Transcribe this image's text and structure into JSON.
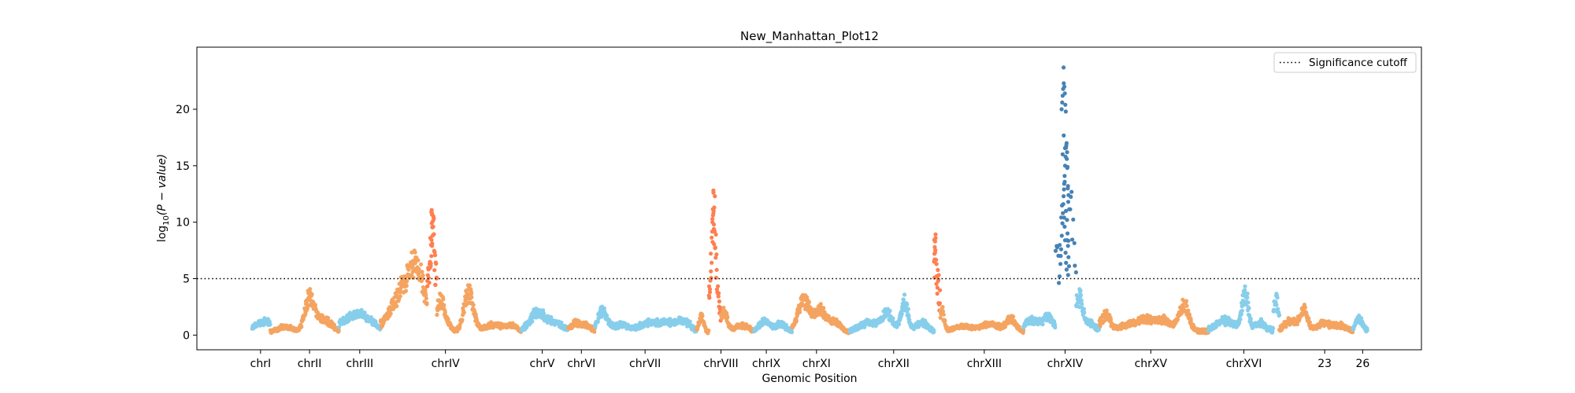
{
  "chart_data": {
    "type": "scatter",
    "title": "New_Manhattan_Plot12",
    "xlabel": "Genomic Position",
    "ylabel_prefix": "log",
    "ylabel_sub": "10",
    "ylabel_suffix": "(P − value)",
    "ylim": [
      -1.3,
      25.5
    ],
    "yticks": [
      0,
      5,
      10,
      15,
      20
    ],
    "significance_cutoff": 5,
    "legend": {
      "label": "Significance cutoff",
      "location": "top-right"
    },
    "colors": {
      "light_blue": "#87ceeb",
      "light_orange": "#f4a460",
      "sig_orange": "#ff7f50",
      "sig_blue": "#4682b4"
    },
    "xticks": [
      {
        "label": "chrI",
        "pos": 0.052
      },
      {
        "label": "chrII",
        "pos": 0.092
      },
      {
        "label": "chrIII",
        "pos": 0.133
      },
      {
        "label": "chrIV",
        "pos": 0.203
      },
      {
        "label": "chrV",
        "pos": 0.282
      },
      {
        "label": "chrVI",
        "pos": 0.314
      },
      {
        "label": "chrVII",
        "pos": 0.366
      },
      {
        "label": "chrVIII",
        "pos": 0.428
      },
      {
        "label": "chrIX",
        "pos": 0.465
      },
      {
        "label": "chrXI",
        "pos": 0.506
      },
      {
        "label": "chrXII",
        "pos": 0.569
      },
      {
        "label": "chrXIII",
        "pos": 0.643
      },
      {
        "label": "chrXIV",
        "pos": 0.709
      },
      {
        "label": "chrXV",
        "pos": 0.779
      },
      {
        "label": "chrXVI",
        "pos": 0.855
      },
      {
        "label": "23",
        "pos": 0.921
      },
      {
        "label": "26",
        "pos": 0.952
      }
    ],
    "segments": [
      {
        "start": 0.045,
        "end": 0.06,
        "color": "light_blue",
        "base": 0.4,
        "peaks": [
          [
            0.05,
            0.6,
            0.004
          ],
          [
            0.057,
            0.8,
            0.003
          ]
        ]
      },
      {
        "start": 0.06,
        "end": 0.116,
        "color": "light_orange",
        "base": 0.3,
        "peaks": [
          [
            0.072,
            0.5,
            0.006
          ],
          [
            0.092,
            3.0,
            0.004
          ],
          [
            0.104,
            1.2,
            0.006
          ]
        ]
      },
      {
        "start": 0.116,
        "end": 0.15,
        "color": "light_blue",
        "base": 0.5,
        "peaks": [
          [
            0.122,
            1.0,
            0.005
          ],
          [
            0.133,
            1.4,
            0.005
          ],
          [
            0.143,
            0.7,
            0.004
          ]
        ]
      },
      {
        "start": 0.15,
        "end": 0.188,
        "color": "light_orange",
        "base": 0.6,
        "peaks": [
          [
            0.168,
            3.4,
            0.009
          ],
          [
            0.18,
            4.5,
            0.006
          ]
        ]
      },
      {
        "start": 0.188,
        "end": 0.196,
        "color": "sig_orange",
        "base": 4.5,
        "peaks": [
          [
            0.189,
            1.0,
            0.002
          ],
          [
            0.192,
            6.2,
            0.0012
          ],
          [
            0.195,
            1.8,
            0.002
          ]
        ]
      },
      {
        "start": 0.196,
        "end": 0.265,
        "color": "light_orange",
        "base": 0.3,
        "peaks": [
          [
            0.199,
            3.0,
            0.003
          ],
          [
            0.205,
            0.6,
            0.003
          ],
          [
            0.222,
            3.6,
            0.004
          ],
          [
            0.243,
            0.7,
            0.008
          ],
          [
            0.258,
            0.5,
            0.004
          ]
        ]
      },
      {
        "start": 0.265,
        "end": 0.303,
        "color": "light_blue",
        "base": 0.4,
        "peaks": [
          [
            0.278,
            1.7,
            0.006
          ],
          [
            0.292,
            0.8,
            0.006
          ]
        ]
      },
      {
        "start": 0.303,
        "end": 0.325,
        "color": "light_orange",
        "base": 0.4,
        "peaks": [
          [
            0.309,
            0.7,
            0.004
          ],
          [
            0.318,
            0.5,
            0.004
          ]
        ]
      },
      {
        "start": 0.325,
        "end": 0.408,
        "color": "light_blue",
        "base": 0.4,
        "peaks": [
          [
            0.331,
            1.8,
            0.004
          ],
          [
            0.346,
            0.6,
            0.006
          ],
          [
            0.37,
            0.8,
            0.008
          ],
          [
            0.386,
            0.7,
            0.006
          ],
          [
            0.398,
            0.9,
            0.005
          ]
        ]
      },
      {
        "start": 0.408,
        "end": 0.418,
        "color": "light_orange",
        "base": 0.3,
        "peaks": [
          [
            0.412,
            1.5,
            0.002
          ]
        ]
      },
      {
        "start": 0.418,
        "end": 0.428,
        "color": "sig_orange",
        "base": 2.0,
        "peaks": [
          [
            0.422,
            9.0,
            0.002
          ]
        ]
      },
      {
        "start": 0.428,
        "end": 0.455,
        "color": "light_orange",
        "base": 0.3,
        "peaks": [
          [
            0.43,
            1.8,
            0.003
          ],
          [
            0.445,
            0.6,
            0.006
          ]
        ]
      },
      {
        "start": 0.455,
        "end": 0.486,
        "color": "light_blue",
        "base": 0.4,
        "peaks": [
          [
            0.463,
            0.9,
            0.004
          ],
          [
            0.476,
            0.6,
            0.005
          ]
        ]
      },
      {
        "start": 0.486,
        "end": 0.533,
        "color": "light_orange",
        "base": 0.3,
        "peaks": [
          [
            0.496,
            3.0,
            0.005
          ],
          [
            0.509,
            2.0,
            0.004
          ],
          [
            0.52,
            1.0,
            0.005
          ]
        ]
      },
      {
        "start": 0.533,
        "end": 0.602,
        "color": "light_blue",
        "base": 0.4,
        "peaks": [
          [
            0.55,
            0.8,
            0.008
          ],
          [
            0.564,
            1.6,
            0.004
          ],
          [
            0.578,
            2.6,
            0.003
          ],
          [
            0.592,
            0.9,
            0.004
          ]
        ]
      },
      {
        "start": 0.602,
        "end": 0.607,
        "color": "sig_orange",
        "base": 4.0,
        "peaks": [
          [
            0.603,
            4.5,
            0.0012
          ]
        ]
      },
      {
        "start": 0.607,
        "end": 0.675,
        "color": "light_orange",
        "base": 0.3,
        "peaks": [
          [
            0.608,
            2.0,
            0.002
          ],
          [
            0.625,
            0.5,
            0.008
          ],
          [
            0.648,
            0.7,
            0.008
          ],
          [
            0.665,
            1.2,
            0.004
          ]
        ]
      },
      {
        "start": 0.675,
        "end": 0.701,
        "color": "light_blue",
        "base": 0.5,
        "peaks": [
          [
            0.682,
            1.0,
            0.005
          ],
          [
            0.695,
            1.3,
            0.004
          ]
        ]
      },
      {
        "start": 0.701,
        "end": 0.718,
        "color": "sig_blue",
        "base": 6.0,
        "peaks": [
          [
            0.702,
            0.5,
            0.002
          ],
          [
            0.708,
            14.0,
            0.0015
          ],
          [
            0.714,
            9.0,
            0.0015
          ]
        ],
        "sparse": true
      },
      {
        "start": 0.718,
        "end": 0.737,
        "color": "light_blue",
        "base": 0.6,
        "peaks": [
          [
            0.72,
            3.0,
            0.003
          ],
          [
            0.728,
            0.6,
            0.004
          ]
        ]
      },
      {
        "start": 0.737,
        "end": 0.826,
        "color": "light_orange",
        "base": 0.4,
        "peaks": [
          [
            0.742,
            1.5,
            0.004
          ],
          [
            0.76,
            0.6,
            0.006
          ],
          [
            0.776,
            1.2,
            0.007
          ],
          [
            0.791,
            0.9,
            0.005
          ],
          [
            0.806,
            2.5,
            0.004
          ]
        ]
      },
      {
        "start": 0.826,
        "end": 0.879,
        "color": "light_blue",
        "base": 0.5,
        "peaks": [
          [
            0.84,
            0.9,
            0.007
          ],
          [
            0.856,
            3.6,
            0.0025
          ],
          [
            0.868,
            0.7,
            0.004
          ]
        ]
      },
      {
        "start": 0.879,
        "end": 0.884,
        "color": "light_blue",
        "base": 0.6,
        "peaks": [
          [
            0.881,
            2.8,
            0.002
          ]
        ]
      },
      {
        "start": 0.884,
        "end": 0.944,
        "color": "light_orange",
        "base": 0.4,
        "peaks": [
          [
            0.893,
            1.0,
            0.005
          ],
          [
            0.904,
            1.8,
            0.003
          ],
          [
            0.92,
            0.7,
            0.006
          ],
          [
            0.934,
            0.5,
            0.005
          ]
        ]
      },
      {
        "start": 0.944,
        "end": 0.956,
        "color": "light_blue",
        "base": 0.4,
        "peaks": [
          [
            0.949,
            1.2,
            0.003
          ]
        ]
      }
    ],
    "sig_highlights": [
      {
        "color": "sig_orange",
        "x": [
          0.191,
          0.1915,
          0.192,
          0.1925,
          0.193,
          0.1935,
          0.192,
          0.1918,
          0.1922
        ],
        "y": [
          6.1,
          7.0,
          7.9,
          8.8,
          9.6,
          10.3,
          10.8,
          9.9,
          8.1
        ]
      },
      {
        "color": "sig_orange",
        "x": [
          0.421,
          0.4215,
          0.422,
          0.4225,
          0.423,
          0.4218,
          0.4222
        ],
        "y": [
          10.0,
          10.6,
          11.0,
          11.3,
          12.3,
          10.8,
          9.4
        ]
      },
      {
        "color": "sig_orange",
        "x": [
          0.602,
          0.6023,
          0.6026,
          0.6029,
          0.6032
        ],
        "y": [
          6.5,
          7.2,
          7.8,
          8.3,
          8.6
        ]
      },
      {
        "color": "sig_blue",
        "x": [
          0.7045,
          0.7052,
          0.7058,
          0.7063,
          0.7068,
          0.7072,
          0.7075,
          0.7078,
          0.7081,
          0.7083,
          0.7086,
          0.709,
          0.7094,
          0.7098,
          0.7102,
          0.7106,
          0.711,
          0.7114,
          0.7118,
          0.7062,
          0.7066,
          0.707,
          0.7074,
          0.7079,
          0.7084,
          0.7088,
          0.7092,
          0.7096,
          0.71,
          0.7104,
          0.7108,
          0.7112,
          0.7116,
          0.7078,
          0.7082,
          0.7086,
          0.709,
          0.7094,
          0.7098,
          0.7102,
          0.7106,
          0.711,
          0.7114,
          0.7118,
          0.7122
        ],
        "y": [
          5.2,
          6.3,
          7.6,
          8.8,
          9.9,
          10.8,
          11.6,
          12.3,
          12.9,
          13.4,
          14.1,
          15.0,
          15.8,
          16.6,
          17.0,
          16.2,
          14.9,
          13.2,
          12.4,
          20.0,
          20.6,
          21.2,
          21.8,
          22.3,
          22.0,
          21.4,
          20.4,
          19.8,
          16.8,
          15.6,
          14.8,
          13.0,
          11.8,
          23.7,
          10.4,
          9.6,
          8.4,
          7.3,
          6.4,
          5.8,
          10.2,
          9.0,
          7.9,
          6.9,
          6.1
        ]
      }
    ]
  }
}
